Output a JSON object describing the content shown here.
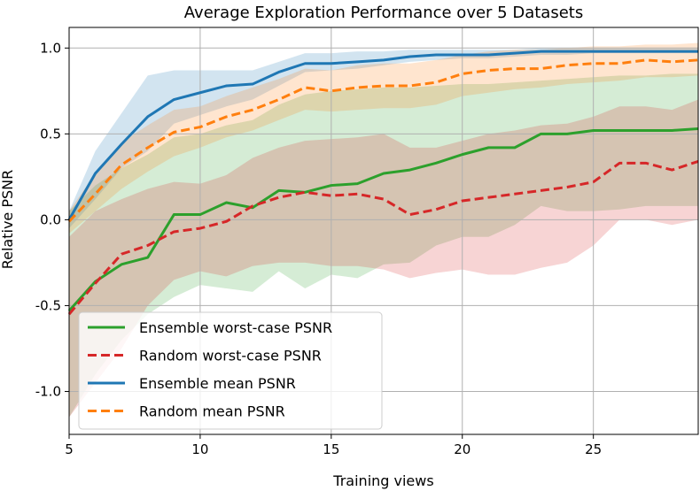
{
  "chart_data": {
    "type": "line",
    "title": "Average Exploration Performance over 5 Datasets",
    "xlabel": "Training views",
    "ylabel": "Relative PSNR",
    "xlim": [
      5,
      29
    ],
    "ylim": [
      -1.25,
      1.12
    ],
    "xticks": [
      5,
      10,
      15,
      20,
      25
    ],
    "xtick_labels": [
      "5",
      "10",
      "15",
      "20",
      "25"
    ],
    "yticks": [
      -1.0,
      -0.5,
      0.0,
      0.5,
      1.0
    ],
    "ytick_labels": [
      "-1.0",
      "-0.5",
      "0.0",
      "0.5",
      "1.0"
    ],
    "grid": true,
    "legend_position": "lower-left",
    "x": [
      5,
      6,
      7,
      8,
      9,
      10,
      11,
      12,
      13,
      14,
      15,
      16,
      17,
      18,
      19,
      20,
      21,
      22,
      23,
      24,
      25,
      26,
      27,
      28,
      29
    ],
    "series": [
      {
        "name": "Ensemble worst-case PSNR",
        "color": "#2ca02c",
        "dash": "solid",
        "values": [
          -0.53,
          -0.36,
          -0.26,
          -0.22,
          0.03,
          0.03,
          0.1,
          0.07,
          0.17,
          0.16,
          0.2,
          0.21,
          0.27,
          0.29,
          0.33,
          0.38,
          0.42,
          0.42,
          0.5,
          0.5,
          0.52,
          0.52,
          0.52,
          0.52,
          0.53
        ],
        "band_lower": [
          -1.15,
          -0.9,
          -0.7,
          -0.55,
          -0.45,
          -0.38,
          -0.4,
          -0.42,
          -0.3,
          -0.4,
          -0.32,
          -0.34,
          -0.26,
          -0.25,
          -0.15,
          -0.1,
          -0.1,
          -0.03,
          0.08,
          0.05,
          0.05,
          0.06,
          0.08,
          0.08,
          0.08
        ],
        "band_upper": [
          0.05,
          0.2,
          0.3,
          0.38,
          0.48,
          0.5,
          0.55,
          0.58,
          0.67,
          0.73,
          0.75,
          0.76,
          0.77,
          0.77,
          0.78,
          0.79,
          0.79,
          0.8,
          0.81,
          0.82,
          0.83,
          0.84,
          0.84,
          0.85,
          0.85
        ]
      },
      {
        "name": "Random worst-case PSNR",
        "color": "#d62728",
        "dash": "dashed",
        "values": [
          -0.55,
          -0.37,
          -0.2,
          -0.15,
          -0.07,
          -0.05,
          -0.01,
          0.08,
          0.13,
          0.16,
          0.14,
          0.15,
          0.12,
          0.03,
          0.06,
          0.11,
          0.13,
          0.15,
          0.17,
          0.19,
          0.22,
          0.33,
          0.33,
          0.29,
          0.34
        ],
        "band_lower": [
          -1.15,
          -0.95,
          -0.75,
          -0.5,
          -0.35,
          -0.3,
          -0.33,
          -0.27,
          -0.25,
          -0.25,
          -0.27,
          -0.27,
          -0.29,
          -0.34,
          -0.31,
          -0.29,
          -0.32,
          -0.32,
          -0.28,
          -0.25,
          -0.15,
          0.0,
          0.0,
          -0.03,
          0.0
        ],
        "band_upper": [
          -0.1,
          0.05,
          0.12,
          0.18,
          0.22,
          0.21,
          0.26,
          0.36,
          0.42,
          0.46,
          0.47,
          0.48,
          0.5,
          0.42,
          0.42,
          0.46,
          0.5,
          0.52,
          0.55,
          0.56,
          0.6,
          0.66,
          0.66,
          0.64,
          0.7
        ]
      },
      {
        "name": "Ensemble mean PSNR",
        "color": "#1f77b4",
        "dash": "solid",
        "values": [
          0.0,
          0.27,
          0.44,
          0.6,
          0.7,
          0.74,
          0.78,
          0.79,
          0.86,
          0.91,
          0.91,
          0.92,
          0.93,
          0.95,
          0.96,
          0.96,
          0.96,
          0.97,
          0.98,
          0.98,
          0.98,
          0.98,
          0.98,
          0.98,
          0.98
        ],
        "band_lower": [
          -0.05,
          0.12,
          0.3,
          0.4,
          0.56,
          0.61,
          0.66,
          0.7,
          0.78,
          0.86,
          0.87,
          0.88,
          0.9,
          0.92,
          0.93,
          0.94,
          0.94,
          0.95,
          0.96,
          0.96,
          0.97,
          0.97,
          0.97,
          0.97,
          0.97
        ],
        "band_upper": [
          0.05,
          0.4,
          0.62,
          0.84,
          0.87,
          0.87,
          0.87,
          0.87,
          0.92,
          0.97,
          0.97,
          0.98,
          0.98,
          0.99,
          0.99,
          0.99,
          0.99,
          0.99,
          1.0,
          1.0,
          1.0,
          1.0,
          1.0,
          1.0,
          1.0
        ]
      },
      {
        "name": "Random mean PSNR",
        "color": "#ff7f0e",
        "dash": "dashed",
        "values": [
          -0.01,
          0.15,
          0.32,
          0.42,
          0.51,
          0.54,
          0.6,
          0.64,
          0.7,
          0.77,
          0.75,
          0.77,
          0.78,
          0.78,
          0.8,
          0.85,
          0.87,
          0.88,
          0.88,
          0.9,
          0.91,
          0.91,
          0.93,
          0.92,
          0.93
        ],
        "band_lower": [
          -0.08,
          0.05,
          0.18,
          0.28,
          0.37,
          0.42,
          0.48,
          0.52,
          0.58,
          0.64,
          0.63,
          0.64,
          0.65,
          0.65,
          0.67,
          0.72,
          0.74,
          0.76,
          0.77,
          0.79,
          0.8,
          0.81,
          0.83,
          0.83,
          0.84
        ],
        "band_upper": [
          0.05,
          0.27,
          0.45,
          0.55,
          0.64,
          0.66,
          0.72,
          0.77,
          0.82,
          0.88,
          0.87,
          0.9,
          0.91,
          0.91,
          0.93,
          0.96,
          0.98,
          0.99,
          0.99,
          1.0,
          1.01,
          1.01,
          1.02,
          1.02,
          1.03
        ]
      }
    ]
  }
}
